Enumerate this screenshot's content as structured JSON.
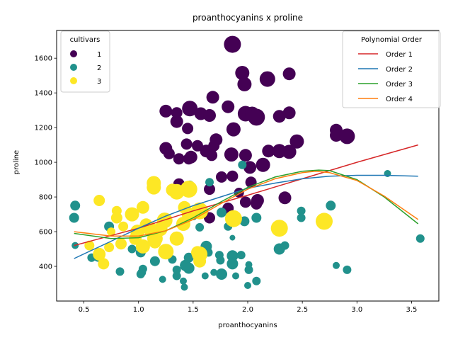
{
  "chart_data": {
    "type": "scatter",
    "title": "proanthocyanins x proline",
    "xlabel": "proanthocyanins",
    "ylabel": "proline",
    "xlim": [
      0.25,
      3.75
    ],
    "ylim": [
      200,
      1760
    ],
    "xticks": [
      0.5,
      1.0,
      1.5,
      2.0,
      2.5,
      3.0,
      3.5
    ],
    "xtick_labels": [
      "0.5",
      "1.0",
      "1.5",
      "2.0",
      "2.5",
      "3.0",
      "3.5"
    ],
    "yticks": [
      400,
      600,
      800,
      1000,
      1200,
      1400,
      1600
    ],
    "ytick_labels": [
      "400",
      "600",
      "800",
      "1000",
      "1200",
      "1400",
      "1600"
    ],
    "grid": false,
    "legend_cultivars": {
      "title": "cultivars",
      "placement": "top-left",
      "entries": [
        {
          "label": "1",
          "color": "#440154"
        },
        {
          "label": "2",
          "color": "#21918c"
        },
        {
          "label": "3",
          "color": "#fde725"
        }
      ]
    },
    "legend_fits": {
      "title": "Polynomial Order",
      "placement": "top-right",
      "entries": [
        {
          "label": "Order 1",
          "color": "#d62728"
        },
        {
          "label": "Order 2",
          "color": "#1f77b4"
        },
        {
          "label": "Order 3",
          "color": "#2ca02c"
        },
        {
          "label": "Order 4",
          "color": "#ff7f0e"
        }
      ]
    },
    "series": [
      {
        "name": "1",
        "color": "#440154",
        "points": [
          [
            1.86,
            1680,
            12
          ],
          [
            1.95,
            1515,
            10
          ],
          [
            2.18,
            1480,
            11
          ],
          [
            2.38,
            1510,
            9
          ],
          [
            1.97,
            1450,
            10
          ],
          [
            1.68,
            1375,
            9
          ],
          [
            1.47,
            1310,
            11
          ],
          [
            1.82,
            1320,
            9
          ],
          [
            1.25,
            1295,
            9
          ],
          [
            1.35,
            1285,
            8
          ],
          [
            1.57,
            1280,
            9
          ],
          [
            1.65,
            1270,
            9
          ],
          [
            1.98,
            1280,
            11
          ],
          [
            2.04,
            1280,
            10
          ],
          [
            2.08,
            1260,
            12
          ],
          [
            2.29,
            1265,
            9
          ],
          [
            2.38,
            1285,
            9
          ],
          [
            1.35,
            1235,
            9
          ],
          [
            1.45,
            1195,
            8
          ],
          [
            1.87,
            1190,
            10
          ],
          [
            2.81,
            1185,
            9
          ],
          [
            2.81,
            1155,
            9
          ],
          [
            2.91,
            1150,
            11
          ],
          [
            2.45,
            1120,
            10
          ],
          [
            1.71,
            1130,
            9
          ],
          [
            1.25,
            1080,
            9
          ],
          [
            1.44,
            1105,
            8
          ],
          [
            1.54,
            1095,
            8
          ],
          [
            1.62,
            1065,
            9
          ],
          [
            1.69,
            1095,
            8
          ],
          [
            1.28,
            1050,
            8
          ],
          [
            1.37,
            1020,
            8
          ],
          [
            1.46,
            1020,
            8
          ],
          [
            1.48,
            1030,
            9
          ],
          [
            1.67,
            1040,
            8
          ],
          [
            1.85,
            1045,
            10
          ],
          [
            1.98,
            1040,
            9
          ],
          [
            2.19,
            1065,
            9
          ],
          [
            2.29,
            1065,
            10
          ],
          [
            2.38,
            1060,
            10
          ],
          [
            2.02,
            970,
            9
          ],
          [
            2.14,
            985,
            10
          ],
          [
            1.76,
            915,
            8
          ],
          [
            1.86,
            920,
            8
          ],
          [
            2.03,
            885,
            8
          ],
          [
            1.65,
            845,
            8
          ],
          [
            1.37,
            875,
            8
          ],
          [
            1.92,
            825,
            7
          ],
          [
            1.98,
            770,
            8
          ],
          [
            2.08,
            760,
            8
          ],
          [
            2.09,
            780,
            9
          ],
          [
            2.34,
            795,
            9
          ],
          [
            1.82,
            735,
            8
          ],
          [
            1.65,
            680,
            8
          ]
        ]
      },
      {
        "name": "2",
        "color": "#21918c",
        "points": [
          [
            0.42,
            750,
            7
          ],
          [
            0.41,
            680,
            7
          ],
          [
            0.42,
            520,
            5
          ],
          [
            0.57,
            450,
            6
          ],
          [
            0.63,
            455,
            7
          ],
          [
            0.73,
            630,
            7
          ],
          [
            0.83,
            370,
            6
          ],
          [
            0.94,
            500,
            6
          ],
          [
            1.02,
            480,
            7
          ],
          [
            1.03,
            365,
            6
          ],
          [
            1.04,
            385,
            6
          ],
          [
            1.02,
            355,
            6
          ],
          [
            1.15,
            430,
            7
          ],
          [
            1.22,
            325,
            5
          ],
          [
            1.31,
            440,
            6
          ],
          [
            1.35,
            380,
            6
          ],
          [
            1.35,
            345,
            6
          ],
          [
            1.41,
            315,
            5
          ],
          [
            1.42,
            280,
            5
          ],
          [
            1.43,
            405,
            8
          ],
          [
            1.46,
            390,
            8
          ],
          [
            1.46,
            450,
            7
          ],
          [
            1.47,
            870,
            6
          ],
          [
            1.5,
            690,
            6
          ],
          [
            1.56,
            625,
            6
          ],
          [
            1.61,
            345,
            5
          ],
          [
            1.62,
            515,
            8
          ],
          [
            1.64,
            480,
            6
          ],
          [
            1.65,
            885,
            6
          ],
          [
            1.69,
            365,
            5
          ],
          [
            1.74,
            465,
            6
          ],
          [
            1.75,
            435,
            6
          ],
          [
            1.76,
            710,
            7
          ],
          [
            1.76,
            355,
            8
          ],
          [
            1.82,
            630,
            6
          ],
          [
            1.86,
            565,
            4
          ],
          [
            1.86,
            460,
            8
          ],
          [
            1.86,
            415,
            8
          ],
          [
            1.89,
            345,
            5
          ],
          [
            1.94,
            465,
            6
          ],
          [
            1.95,
            985,
            6
          ],
          [
            1.97,
            660,
            7
          ],
          [
            2.0,
            290,
            5
          ],
          [
            2.01,
            410,
            5
          ],
          [
            2.01,
            380,
            6
          ],
          [
            2.08,
            315,
            6
          ],
          [
            2.08,
            680,
            7
          ],
          [
            2.29,
            500,
            8
          ],
          [
            2.34,
            520,
            6
          ],
          [
            2.49,
            720,
            6
          ],
          [
            2.49,
            680,
            6
          ],
          [
            2.76,
            750,
            7
          ],
          [
            2.81,
            405,
            5
          ],
          [
            2.91,
            380,
            6
          ],
          [
            3.28,
            935,
            5
          ],
          [
            3.58,
            560,
            6
          ]
        ]
      },
      {
        "name": "3",
        "color": "#fde725",
        "points": [
          [
            0.55,
            520,
            7
          ],
          [
            0.64,
            470,
            9
          ],
          [
            0.68,
            415,
            8
          ],
          [
            0.64,
            780,
            8
          ],
          [
            0.73,
            510,
            7
          ],
          [
            0.75,
            600,
            6
          ],
          [
            0.8,
            720,
            7
          ],
          [
            0.8,
            680,
            8
          ],
          [
            0.84,
            530,
            8
          ],
          [
            0.86,
            630,
            7
          ],
          [
            0.94,
            700,
            10
          ],
          [
            0.97,
            560,
            9
          ],
          [
            0.99,
            600,
            10
          ],
          [
            1.04,
            515,
            10
          ],
          [
            1.04,
            740,
            9
          ],
          [
            1.07,
            640,
            9
          ],
          [
            1.1,
            620,
            10
          ],
          [
            1.14,
            880,
            10
          ],
          [
            1.14,
            855,
            10
          ],
          [
            1.15,
            560,
            11
          ],
          [
            1.15,
            540,
            9
          ],
          [
            1.2,
            615,
            10
          ],
          [
            1.24,
            665,
            11
          ],
          [
            1.25,
            485,
            11
          ],
          [
            1.31,
            840,
            9
          ],
          [
            1.35,
            830,
            11
          ],
          [
            1.35,
            560,
            10
          ],
          [
            1.41,
            645,
            10
          ],
          [
            1.42,
            740,
            9
          ],
          [
            1.46,
            845,
            12
          ],
          [
            1.46,
            700,
            10
          ],
          [
            1.54,
            480,
            9
          ],
          [
            1.56,
            430,
            9
          ],
          [
            1.56,
            470,
            11
          ],
          [
            1.56,
            720,
            12
          ],
          [
            1.87,
            675,
            12
          ],
          [
            2.29,
            620,
            12
          ],
          [
            2.7,
            660,
            12
          ]
        ]
      }
    ],
    "fits": [
      {
        "name": "Order 1",
        "color": "#d62728",
        "points": [
          [
            0.41,
            520
          ],
          [
            1.0,
            620
          ],
          [
            1.5,
            720
          ],
          [
            2.0,
            810
          ],
          [
            2.5,
            905
          ],
          [
            3.0,
            1000
          ],
          [
            3.56,
            1100
          ]
        ]
      },
      {
        "name": "Order 2",
        "color": "#1f77b4",
        "points": [
          [
            0.41,
            445
          ],
          [
            0.75,
            545
          ],
          [
            1.0,
            620
          ],
          [
            1.25,
            690
          ],
          [
            1.5,
            750
          ],
          [
            1.75,
            800
          ],
          [
            2.0,
            850
          ],
          [
            2.25,
            880
          ],
          [
            2.5,
            905
          ],
          [
            2.75,
            920
          ],
          [
            3.0,
            925
          ],
          [
            3.25,
            925
          ],
          [
            3.56,
            920
          ]
        ]
      },
      {
        "name": "Order 3",
        "color": "#2ca02c",
        "points": [
          [
            0.41,
            590
          ],
          [
            0.75,
            560
          ],
          [
            1.0,
            565
          ],
          [
            1.25,
            605
          ],
          [
            1.5,
            680
          ],
          [
            1.75,
            770
          ],
          [
            2.0,
            855
          ],
          [
            2.25,
            915
          ],
          [
            2.5,
            948
          ],
          [
            2.65,
            955
          ],
          [
            2.75,
            952
          ],
          [
            3.0,
            900
          ],
          [
            3.25,
            800
          ],
          [
            3.56,
            645
          ]
        ]
      },
      {
        "name": "Order 4",
        "color": "#ff7f0e",
        "points": [
          [
            0.41,
            600
          ],
          [
            0.75,
            575
          ],
          [
            1.0,
            575
          ],
          [
            1.25,
            605
          ],
          [
            1.5,
            670
          ],
          [
            1.75,
            760
          ],
          [
            2.0,
            845
          ],
          [
            2.25,
            905
          ],
          [
            2.5,
            940
          ],
          [
            2.62,
            948
          ],
          [
            2.75,
            940
          ],
          [
            3.0,
            895
          ],
          [
            3.25,
            805
          ],
          [
            3.56,
            670
          ]
        ]
      }
    ]
  }
}
